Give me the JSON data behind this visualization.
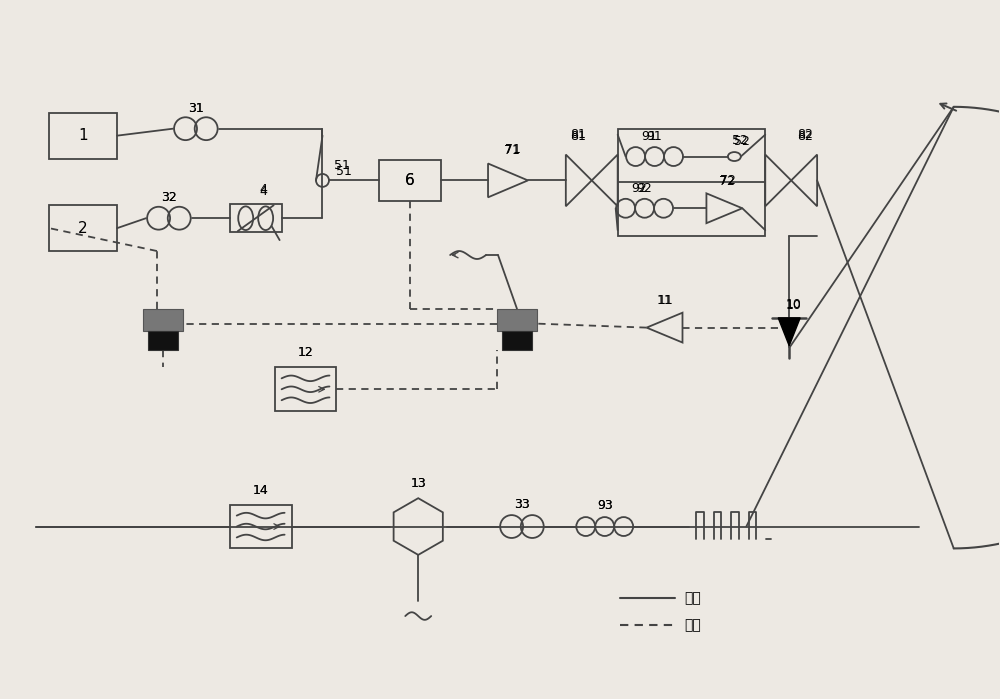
{
  "bg_color": "#ede9e3",
  "line_color": "#444444",
  "dashed_color": "#444444",
  "legend_solid": "光路",
  "legend_dashed": "电路",
  "figw": 10.0,
  "figh": 6.99
}
